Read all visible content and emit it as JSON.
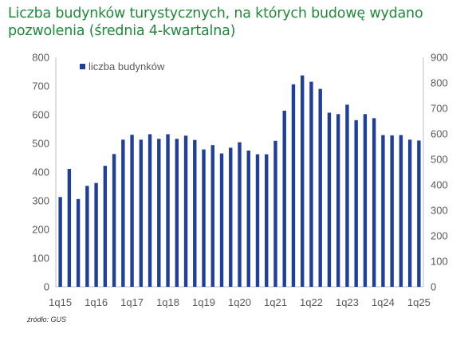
{
  "header": {
    "title_line1": "Liczba budynków turystycznych, na których budowę wydano",
    "title_line2": "pozwolenia (średnia 4-kwartalna)"
  },
  "source": "źródło: GUS",
  "chart_data": {
    "type": "bar",
    "title": "Liczba budynków turystycznych, na których budowę wydano pozwolenia (średnia 4-kwartalna)",
    "xlabel": "",
    "ylabel": "",
    "ylim": [
      0,
      800
    ],
    "y2lim": [
      0,
      900
    ],
    "yticks": [
      0,
      100,
      200,
      300,
      400,
      500,
      600,
      700,
      800
    ],
    "y2ticks": [
      0,
      100,
      200,
      300,
      400,
      500,
      600,
      700,
      800,
      900
    ],
    "xtick_labels": [
      "1q15",
      "1q16",
      "1q17",
      "1q18",
      "1q19",
      "1q20",
      "1q21",
      "1q22",
      "1q23",
      "1q24",
      "1q25"
    ],
    "legend_position": "top-left",
    "grid": false,
    "bar_color": "#1f3f9a",
    "categories": [
      "1q15",
      "2q15",
      "3q15",
      "4q15",
      "1q16",
      "2q16",
      "3q16",
      "4q16",
      "1q17",
      "2q17",
      "3q17",
      "4q17",
      "1q18",
      "2q18",
      "3q18",
      "4q18",
      "1q19",
      "2q19",
      "3q19",
      "4q19",
      "1q20",
      "2q20",
      "3q20",
      "4q20",
      "1q21",
      "2q21",
      "3q21",
      "4q21",
      "1q22",
      "2q22",
      "3q22",
      "4q22",
      "1q23",
      "2q23",
      "3q23",
      "4q23",
      "1q24",
      "2q24",
      "3q24",
      "4q24",
      "1q25"
    ],
    "series": [
      {
        "name": "liczba budynków",
        "values": [
          313,
          411,
          306,
          352,
          362,
          422,
          463,
          513,
          530,
          513,
          532,
          516,
          532,
          516,
          527,
          512,
          479,
          494,
          465,
          485,
          504,
          475,
          462,
          462,
          509,
          614,
          706,
          737,
          715,
          690,
          607,
          602,
          635,
          581,
          602,
          588,
          529,
          528,
          529,
          513,
          510
        ]
      }
    ]
  }
}
